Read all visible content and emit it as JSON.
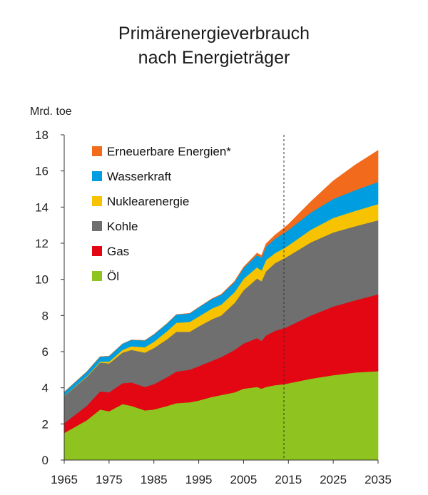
{
  "title_line1": "Primärenergieverbrauch",
  "title_line2": "nach Energieträger",
  "chart_data": {
    "type": "area",
    "stacked": true,
    "ylabel": "Mrd. toe",
    "ylim": [
      0,
      18
    ],
    "xlim": [
      1965,
      2035
    ],
    "y_ticks": [
      "0",
      "2",
      "4",
      "6",
      "8",
      "10",
      "12",
      "14",
      "16",
      "18"
    ],
    "x_ticks": [
      "1965",
      "1975",
      "1985",
      "1995",
      "2005",
      "2015",
      "2025",
      "2035"
    ],
    "projection_marker_year": 2014,
    "legend_position": "top-left",
    "x": [
      1965,
      1970,
      1973,
      1975,
      1978,
      1980,
      1983,
      1985,
      1988,
      1990,
      1993,
      1995,
      1998,
      2000,
      2003,
      2005,
      2008,
      2009,
      2010,
      2012,
      2014,
      2015,
      2020,
      2025,
      2030,
      2035
    ],
    "series": [
      {
        "name": "Öl",
        "color": "#8fc31f",
        "values": [
          1.5,
          2.2,
          2.8,
          2.7,
          3.1,
          3.0,
          2.75,
          2.8,
          3.0,
          3.15,
          3.2,
          3.3,
          3.5,
          3.6,
          3.75,
          3.95,
          4.05,
          3.95,
          4.05,
          4.15,
          4.2,
          4.25,
          4.5,
          4.7,
          4.85,
          4.92
        ]
      },
      {
        "name": "Gas",
        "color": "#e30613",
        "values": [
          0.55,
          0.8,
          1.0,
          1.05,
          1.15,
          1.3,
          1.3,
          1.4,
          1.6,
          1.75,
          1.8,
          1.9,
          2.0,
          2.1,
          2.35,
          2.5,
          2.7,
          2.65,
          2.85,
          3.0,
          3.1,
          3.15,
          3.5,
          3.8,
          4.0,
          4.25
        ]
      },
      {
        "name": "Kohle",
        "color": "#6f6f6f",
        "values": [
          1.5,
          1.6,
          1.6,
          1.6,
          1.7,
          1.8,
          1.9,
          2.0,
          2.1,
          2.2,
          2.1,
          2.2,
          2.3,
          2.3,
          2.6,
          2.95,
          3.3,
          3.3,
          3.55,
          3.75,
          3.85,
          3.9,
          4.05,
          4.1,
          4.1,
          4.1
        ]
      },
      {
        "name": "Nuklearenergie",
        "color": "#f7c300",
        "values": [
          0.01,
          0.03,
          0.05,
          0.1,
          0.15,
          0.2,
          0.3,
          0.35,
          0.45,
          0.5,
          0.55,
          0.55,
          0.6,
          0.6,
          0.6,
          0.63,
          0.62,
          0.6,
          0.62,
          0.55,
          0.57,
          0.58,
          0.7,
          0.8,
          0.85,
          0.9
        ]
      },
      {
        "name": "Wasserkraft",
        "color": "#009ee0",
        "values": [
          0.2,
          0.25,
          0.27,
          0.3,
          0.33,
          0.35,
          0.37,
          0.4,
          0.42,
          0.45,
          0.47,
          0.5,
          0.53,
          0.55,
          0.57,
          0.6,
          0.68,
          0.7,
          0.75,
          0.8,
          0.85,
          0.86,
          0.95,
          1.05,
          1.15,
          1.22
        ]
      },
      {
        "name": "Erneuerbare Energien*",
        "color": "#f26a1b",
        "values": [
          0.0,
          0.0,
          0.0,
          0.0,
          0.0,
          0.0,
          0.0,
          0.0,
          0.0,
          0.0,
          0.0,
          0.0,
          0.01,
          0.02,
          0.03,
          0.05,
          0.1,
          0.12,
          0.15,
          0.2,
          0.27,
          0.31,
          0.6,
          1.0,
          1.4,
          1.75
        ]
      }
    ]
  }
}
